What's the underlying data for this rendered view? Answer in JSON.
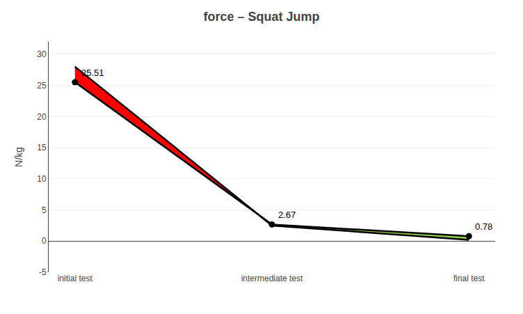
{
  "chart_data": {
    "type": "line",
    "title": "force – Squat Jump",
    "ylabel": "N/kg",
    "categories": [
      "initial test",
      "intermediate test",
      "final test"
    ],
    "series": [
      {
        "color": "#000000",
        "marker": "circle",
        "values": [
          25.51,
          2.67,
          0.78
        ]
      },
      {
        "color": "#000000",
        "values": [
          28.0,
          2.5,
          0.2
        ]
      }
    ],
    "colors": [
      "#ff0000",
      "#92d050"
    ],
    "annotations": [
      {
        "text": "25.51",
        "x": "initial test",
        "y": 25.51
      },
      {
        "text": "2.67",
        "x": "intermediate test",
        "y": 2.67
      },
      {
        "text": "0.78",
        "x": "final test",
        "y": 0.78
      }
    ],
    "ylim": [
      -5,
      32
    ],
    "yticks": [
      -5,
      0,
      5,
      10,
      15,
      20,
      25,
      30
    ],
    "grid": true
  }
}
